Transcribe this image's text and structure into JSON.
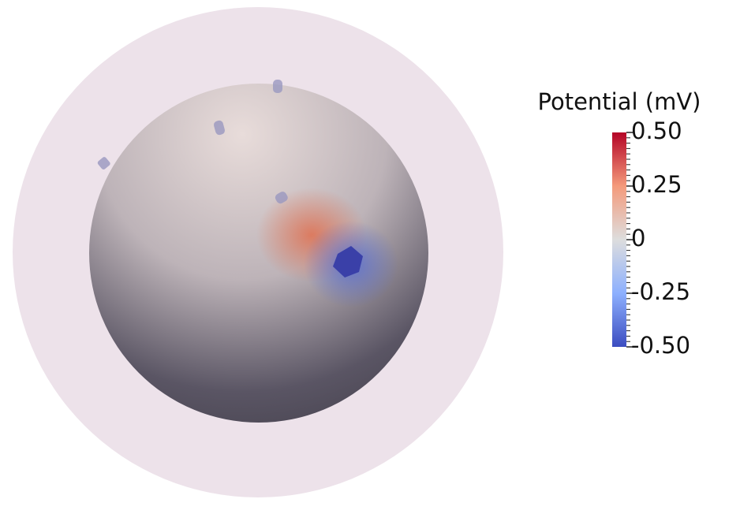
{
  "colorbar": {
    "title": "Potential (mV)",
    "range": [
      -0.5,
      0.5
    ],
    "ticks": [
      {
        "value": 0.5,
        "label": "0.50"
      },
      0.25,
      0,
      -0.25,
      {
        "value": -0.5,
        "label": "-0.50"
      }
    ]
  }
}
